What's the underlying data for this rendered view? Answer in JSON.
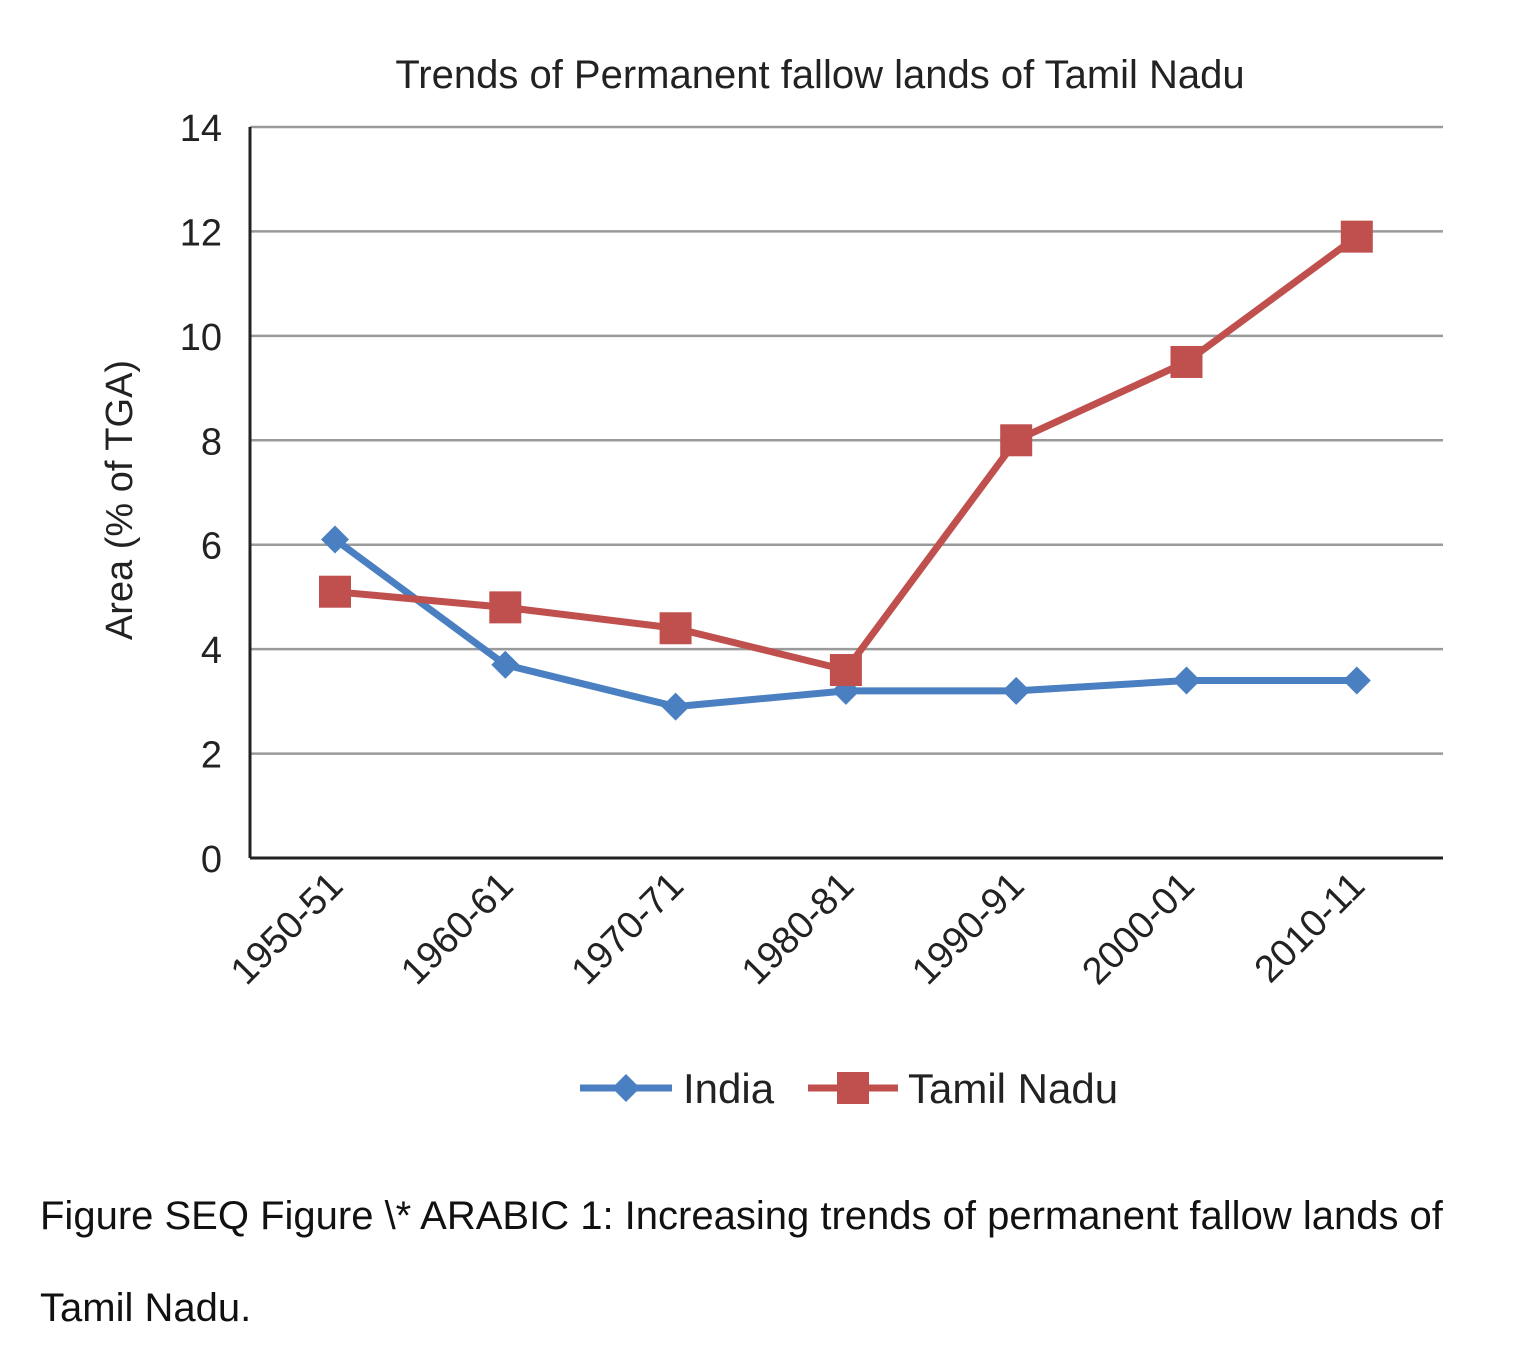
{
  "chart_data": {
    "type": "line",
    "title": "Trends of Permanent fallow lands of Tamil Nadu",
    "xlabel": "",
    "ylabel": "Area (% of TGA)",
    "categories": [
      "1950-51",
      "1960-61",
      "1970-71",
      "1980-81",
      "1990-91",
      "2000-01",
      "2010-11"
    ],
    "series": [
      {
        "name": "India",
        "values": [
          6.1,
          3.7,
          2.9,
          3.2,
          3.2,
          3.4,
          3.4
        ],
        "color": "#4a7fc1",
        "marker": "diamond"
      },
      {
        "name": "Tamil Nadu",
        "values": [
          5.1,
          4.8,
          4.4,
          3.6,
          8.0,
          9.5,
          11.9
        ],
        "color": "#c0504d",
        "marker": "square"
      }
    ],
    "ylim": [
      0,
      14
    ],
    "yticks": [
      0,
      2,
      4,
      6,
      8,
      10,
      12,
      14
    ],
    "grid": "horizontal",
    "legend": "bottom"
  },
  "caption": "Figure  SEQ Figure \\* ARABIC 1: Increasing trends of permanent fallow lands of Tamil Nadu."
}
